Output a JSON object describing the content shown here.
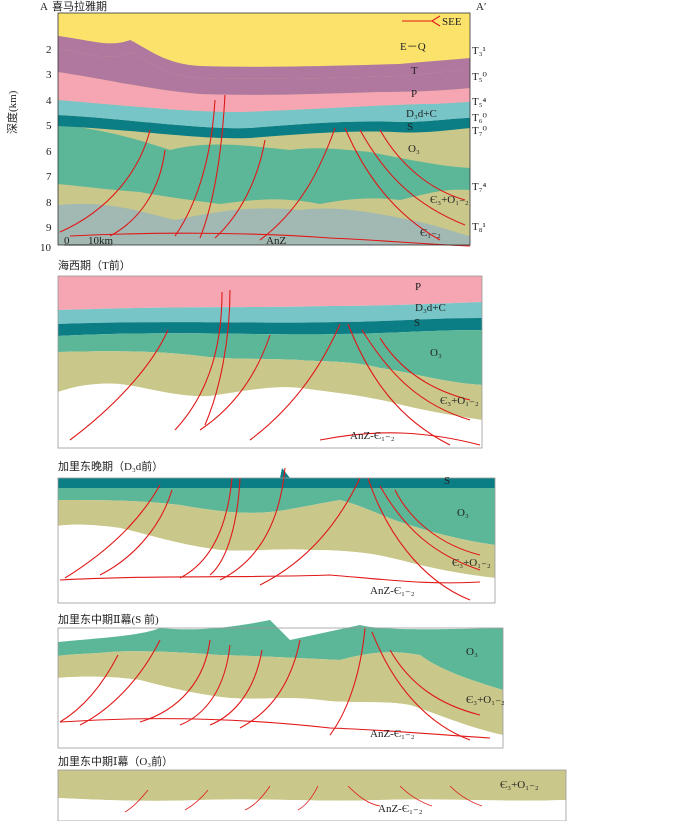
{
  "corner_labels": {
    "left": "A",
    "right": "A′"
  },
  "legend": {
    "label": "SEE"
  },
  "axis": {
    "ylabel": "深度(km)",
    "ticks": [
      "2",
      "3",
      "4",
      "5",
      "6",
      "7",
      "8",
      "9",
      "10"
    ]
  },
  "scalebar": {
    "start": "0",
    "end": "10km"
  },
  "colors": {
    "EQ": "#fbe26b",
    "T": "#b0789f",
    "P": "#f6a6b2",
    "D3": "#78c5c7",
    "S": "#0a7d85",
    "O3": "#5cb798",
    "C3": "#c9c88a",
    "basement": "#a2b8b2",
    "fault": "#e01818"
  },
  "panels": [
    {
      "title": "喜马拉雅期",
      "layers": [
        "E－Q",
        "T",
        "P",
        "D₃d+C",
        "S",
        "O₃",
        "Є₃+O₁₋₂",
        "Є₁₋₂",
        "AnZ"
      ],
      "horizons": [
        "T₃¹",
        "T₅⁰",
        "T₅⁴",
        "T₆⁰",
        "T₇⁰",
        "T₇⁴",
        "T₈¹"
      ]
    },
    {
      "title": "海西期（T前）",
      "layers": [
        "P",
        "D₃d+C",
        "S",
        "O₃",
        "Є₃+O₁₋₂",
        "AnZ-Є₁₋₂"
      ]
    },
    {
      "title": "加里东晚期（D₃d前）",
      "layers": [
        "S",
        "O₃",
        "Є₃+O₁₋₂",
        "AnZ-Є₁₋₂"
      ]
    },
    {
      "title": "加里东中期Ⅱ幕(S 前)",
      "layers": [
        "O₃",
        "Є₃+O₁₋₂",
        "AnZ-Є₁₋₂"
      ]
    },
    {
      "title": "加里东中期Ⅰ幕（O₃前）",
      "layers": [
        "Є₃+O₁₋₂",
        "AnZ-Є₁₋₂"
      ]
    }
  ]
}
